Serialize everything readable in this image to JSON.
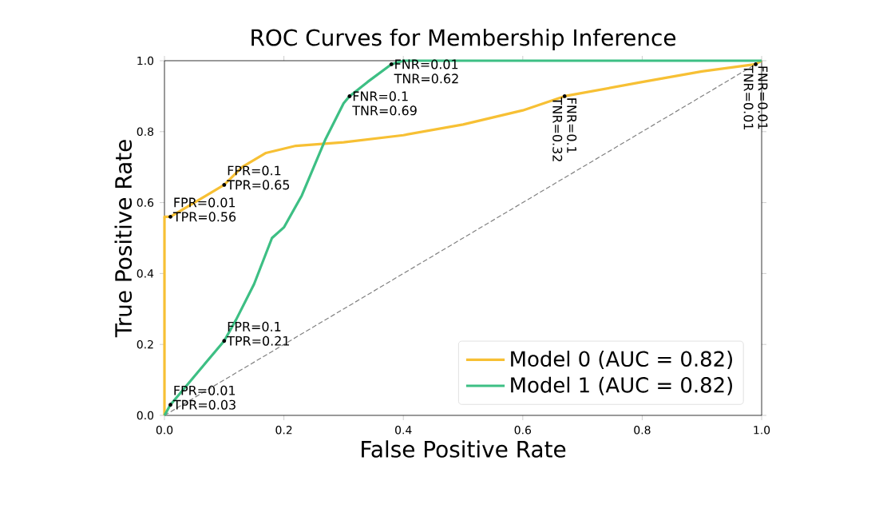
{
  "chart_data": {
    "type": "line",
    "title": "ROC Curves for Membership Inference",
    "xlabel": "False Positive Rate",
    "ylabel": "True Positive Rate",
    "xlim": [
      0,
      1
    ],
    "ylim": [
      0,
      1
    ],
    "xticks": [
      {
        "value": 0,
        "label": "0.0"
      },
      0.2,
      0.4,
      0.6,
      0.8,
      {
        "value": 1,
        "label": "1.0"
      }
    ],
    "yticks": [
      {
        "value": 0,
        "label": "0.0"
      },
      0.2,
      0.4,
      0.6,
      0.8,
      {
        "value": 1,
        "label": "1.0"
      }
    ],
    "legend": "bottom right",
    "grid": false,
    "series": [
      {
        "name": "Model 0 (AUC = 0.82)",
        "color": "#f7c034",
        "x": [
          0,
          0,
          0.01,
          0.05,
          0.1,
          0.13,
          0.17,
          0.22,
          0.3,
          0.4,
          0.5,
          0.6,
          0.67,
          0.8,
          0.9,
          0.99,
          1
        ],
        "values": [
          0,
          0.56,
          0.56,
          0.6,
          0.65,
          0.7,
          0.74,
          0.76,
          0.77,
          0.79,
          0.82,
          0.86,
          0.9,
          0.94,
          0.97,
          0.99,
          1
        ]
      },
      {
        "name": "Model 1 (AUC = 0.82)",
        "color": "#3dbf84",
        "x": [
          0,
          0.01,
          0.03,
          0.06,
          0.1,
          0.12,
          0.15,
          0.18,
          0.2,
          0.23,
          0.25,
          0.27,
          0.3,
          0.31,
          0.34,
          0.38,
          0.4,
          1
        ],
        "values": [
          0,
          0.03,
          0.07,
          0.13,
          0.21,
          0.27,
          0.37,
          0.5,
          0.53,
          0.62,
          0.7,
          0.78,
          0.88,
          0.9,
          0.94,
          0.99,
          1,
          1
        ]
      },
      {
        "color": "#808080",
        "line_style": "dashed",
        "x": [
          0,
          1
        ],
        "values": [
          0,
          1
        ]
      }
    ],
    "annotations": [
      {
        "text": "FPR=0.01 TPR=0.56",
        "x": 0.01,
        "y": 0.56
      },
      {
        "text": "FPR=0.1 TPR=0.65",
        "x": 0.1,
        "y": 0.65
      },
      {
        "text": "FNR=0.1 TNR=0.32",
        "x": 0.67,
        "y": 0.9
      },
      {
        "text": "FNR=0.01 TNR=0.01",
        "x": 0.99,
        "y": 0.99
      },
      {
        "text": "FPR=0.01 TPR=0.03",
        "x": 0.01,
        "y": 0.03
      },
      {
        "text": "FPR=0.1 TPR=0.21",
        "x": 0.1,
        "y": 0.21
      },
      {
        "text": "FNR=0.1 TNR=0.69",
        "x": 0.31,
        "y": 0.9
      },
      {
        "text": "FNR=0.01 TNR=0.62",
        "x": 0.38,
        "y": 0.99
      }
    ]
  }
}
